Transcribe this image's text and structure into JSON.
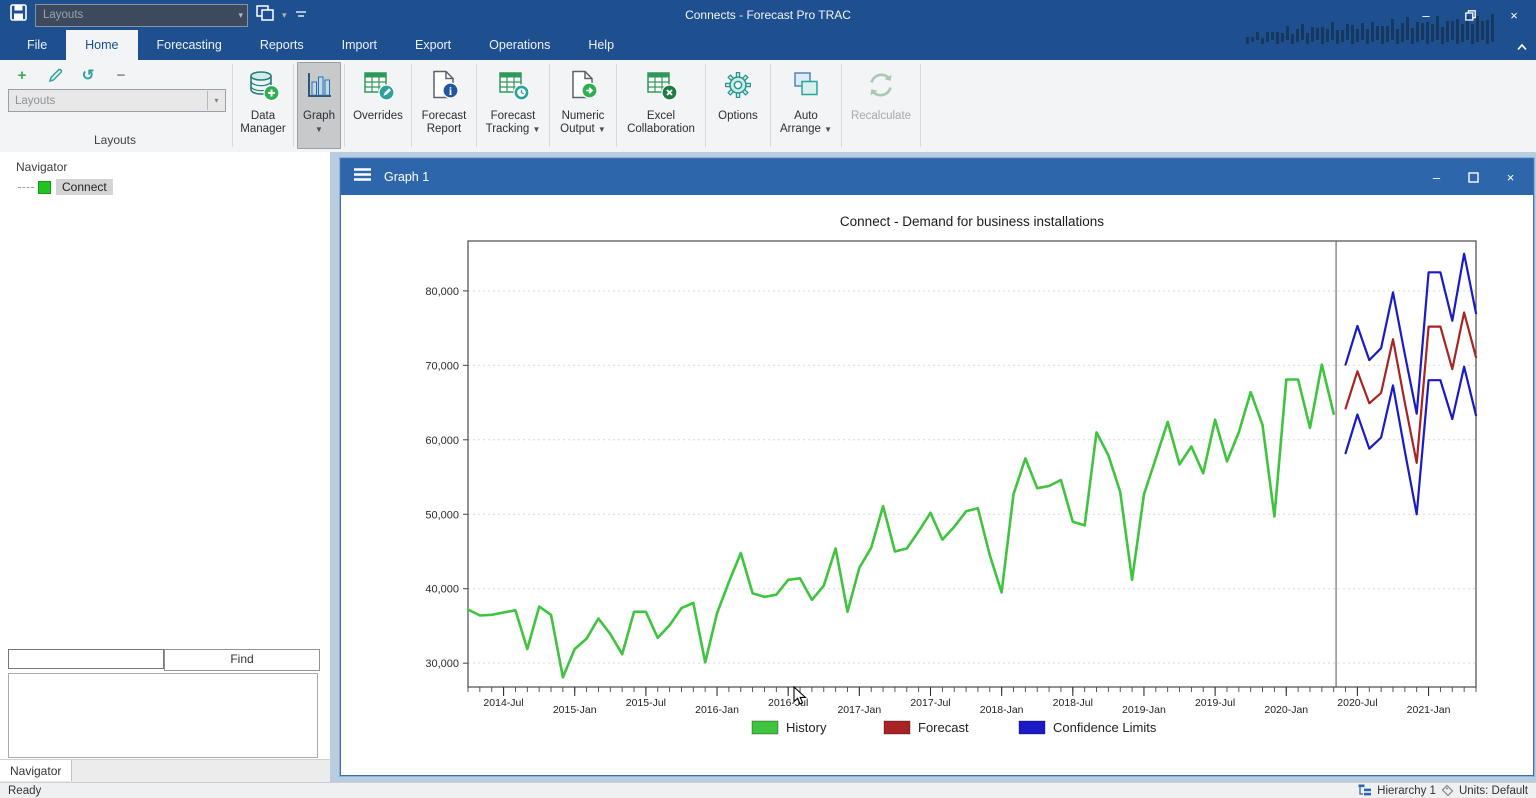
{
  "window": {
    "title": "Connects - Forecast Pro TRAC"
  },
  "quick_access": {
    "layouts_placeholder": "Layouts",
    "icons": [
      "save-icon",
      "window-layout-icon",
      "dropdown-caret",
      "customize-toolbar-icon"
    ]
  },
  "menu": {
    "tabs": [
      "File",
      "Home",
      "Forecasting",
      "Reports",
      "Import",
      "Export",
      "Operations",
      "Help"
    ],
    "active_tab": "Home"
  },
  "ribbon": {
    "layouts_group": {
      "caption": "Layouts",
      "combo_placeholder": "Layouts",
      "small_buttons": [
        "add",
        "edit",
        "undo",
        "remove"
      ]
    },
    "buttons": [
      {
        "id": "data-manager",
        "lines": [
          "Data",
          "Manager"
        ],
        "icon": "database-add-icon",
        "dropdown": false,
        "state": "normal"
      },
      {
        "id": "graph",
        "lines": [
          "Graph"
        ],
        "icon": "bar-chart-icon",
        "dropdown": true,
        "state": "active"
      },
      {
        "id": "overrides",
        "lines": [
          "Overrides"
        ],
        "icon": "table-edit-icon",
        "dropdown": false,
        "state": "normal"
      },
      {
        "id": "forecast-report",
        "lines": [
          "Forecast",
          "Report"
        ],
        "icon": "report-info-icon",
        "dropdown": false,
        "state": "normal"
      },
      {
        "id": "forecast-tracking",
        "lines": [
          "Forecast",
          "Tracking"
        ],
        "icon": "table-clock-icon",
        "dropdown": true,
        "state": "normal"
      },
      {
        "id": "numeric-output",
        "lines": [
          "Numeric",
          "Output"
        ],
        "icon": "doc-export-icon",
        "dropdown": true,
        "state": "normal"
      },
      {
        "id": "excel-collaboration",
        "lines": [
          "Excel",
          "Collaboration"
        ],
        "icon": "excel-icon",
        "dropdown": false,
        "state": "normal"
      },
      {
        "id": "options",
        "lines": [
          "Options"
        ],
        "icon": "gear-icon",
        "dropdown": false,
        "state": "normal"
      },
      {
        "id": "auto-arrange",
        "lines": [
          "Auto",
          "Arrange"
        ],
        "icon": "arrange-icon",
        "dropdown": true,
        "state": "normal"
      },
      {
        "id": "recalculate",
        "lines": [
          "Recalculate"
        ],
        "icon": "recalc-icon",
        "dropdown": false,
        "state": "disabled"
      }
    ]
  },
  "navigator": {
    "title": "Navigator",
    "tree_item": "Connect",
    "find_value": "",
    "find_label": "Find",
    "tab_label": "Navigator"
  },
  "graph_window": {
    "title": "Graph 1"
  },
  "chart_data": {
    "type": "line",
    "title": "Connect - Demand for business installations",
    "x_unit": "month",
    "x_start": "2014-Apr",
    "x_end": "2021-May",
    "total_months": 86,
    "x_tick_labels": [
      "2014-Jul",
      "2015-Jan",
      "2015-Jul",
      "2016-Jan",
      "2016-Jul",
      "2017-Jan",
      "2017-Jul",
      "2018-Jan",
      "2018-Jul",
      "2019-Jan",
      "2019-Jul",
      "2020-Jan",
      "2020-Jul",
      "2021-Jan"
    ],
    "x_tick_month_indices": [
      3,
      9,
      15,
      21,
      27,
      33,
      39,
      45,
      51,
      57,
      63,
      69,
      75,
      81
    ],
    "y_ticks": [
      30000,
      40000,
      50000,
      60000,
      70000,
      80000
    ],
    "y_tick_labels": [
      "30,000",
      "40,000",
      "50,000",
      "60,000",
      "70,000",
      "80,000"
    ],
    "ylim": [
      26800,
      86700
    ],
    "grid": "dotted-horizontal",
    "legend_position": "bottom",
    "history_forecast_split_index": 73.2,
    "series": [
      {
        "name": "History",
        "color": "#3ec43e",
        "start_month_index": 0,
        "values": [
          37200,
          36400,
          36500,
          36800,
          37100,
          31900,
          37600,
          36500,
          28100,
          31900,
          33300,
          36000,
          33900,
          31200,
          36900,
          36900,
          33400,
          35100,
          37400,
          38100,
          30100,
          36700,
          40900,
          44800,
          39400,
          38900,
          39200,
          41200,
          41400,
          38500,
          40400,
          45400,
          36900,
          42800,
          45500,
          51100,
          45000,
          45400,
          47700,
          50200,
          46600,
          48300,
          50400,
          50800,
          44500,
          39500,
          52700,
          57500,
          53500,
          53800,
          54600,
          49000,
          48500,
          61000,
          57900,
          53000,
          41200,
          52700,
          57500,
          62400,
          56700,
          59100,
          55500,
          62700,
          57100,
          61000,
          66400,
          62000,
          49700,
          68100,
          68100,
          61600,
          70100,
          63500
        ]
      },
      {
        "name": "Forecast",
        "color": "#a82424",
        "start_month_index": 74,
        "values": [
          64200,
          69200,
          64900,
          66300,
          73500,
          65000,
          56900,
          75200,
          75200,
          69500,
          77100,
          71100
        ]
      },
      {
        "name": "Confidence Limits",
        "color": "#1a1ac8",
        "start_month_index": 74,
        "upper": [
          70100,
          75300,
          70700,
          72300,
          79800,
          71500,
          63500,
          82500,
          82500,
          76000,
          85000,
          77000
        ],
        "lower": [
          58200,
          63400,
          58800,
          60300,
          67300,
          58500,
          50000,
          68000,
          68000,
          62800,
          69800,
          63300
        ]
      }
    ]
  },
  "status_bar": {
    "ready": "Ready",
    "hierarchy": "Hierarchy 1",
    "units": "Units: Default"
  }
}
